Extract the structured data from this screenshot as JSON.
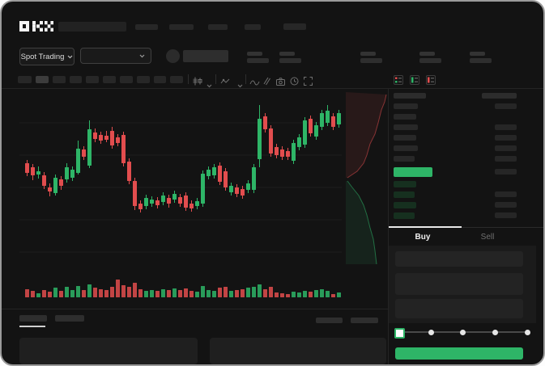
{
  "app": {
    "logo": "OKX"
  },
  "trading_controls": {
    "market_selector_label": "Spot Trading"
  },
  "toolbar_icons": [
    "candle-style",
    "line-style",
    "indicator",
    "wave",
    "compare",
    "camera",
    "clock",
    "fullscreen"
  ],
  "orderbook": {
    "view_icons": [
      "book-both-icon",
      "book-bids-icon",
      "book-asks-icon"
    ],
    "header": {
      "left_width": 40,
      "right_width": 43
    },
    "ask_rows": [
      {
        "lw": 30,
        "rw": 27
      },
      {
        "lw": 28,
        "rw": 0
      },
      {
        "lw": 30,
        "rw": 27
      },
      {
        "lw": 28,
        "rw": 27
      },
      {
        "lw": 30,
        "rw": 27
      },
      {
        "lw": 26,
        "rw": 27
      }
    ],
    "price_row": {
      "lw": 48,
      "rw": 27
    },
    "bid_rows": [
      {
        "lw": 28,
        "rw": 0
      },
      {
        "lw": 26,
        "rw": 27
      },
      {
        "lw": 28,
        "rw": 27
      },
      {
        "lw": 26,
        "rw": 27
      }
    ],
    "tabs": {
      "buy": "Buy",
      "sell": "Sell",
      "active": "buy"
    }
  },
  "trade_form": {
    "slider_steps": 5,
    "slider_value_index": 0,
    "submit_label": ""
  },
  "colors": {
    "green": "#2eb567",
    "red": "#e24d4e",
    "buy_button": "#2eb567",
    "bid_row": "#16301f",
    "ask_row": "#282828",
    "skeleton": "#2b2b2b"
  },
  "chart_data": {
    "type": "candlestick_with_volume",
    "title": "",
    "x_axis": "time (labels not shown)",
    "y_axis": "price (labels not shown)",
    "grid": "faint horizontal lines",
    "note": "values in relative price units read from pixel positions; [open,high,low,close,volume]",
    "candles": [
      [
        130,
        134,
        114,
        118,
        10
      ],
      [
        125,
        129,
        109,
        115,
        8
      ],
      [
        116,
        126,
        111,
        120,
        5
      ],
      [
        115,
        119,
        98,
        102,
        9
      ],
      [
        100,
        105,
        89,
        95,
        7
      ],
      [
        93,
        116,
        90,
        112,
        12
      ],
      [
        110,
        114,
        97,
        102,
        8
      ],
      [
        110,
        130,
        106,
        125,
        13
      ],
      [
        112,
        126,
        108,
        122,
        9
      ],
      [
        118,
        158,
        116,
        148,
        14
      ],
      [
        147,
        151,
        134,
        138,
        9
      ],
      [
        127,
        183,
        124,
        172,
        16
      ],
      [
        168,
        173,
        156,
        160,
        12
      ],
      [
        165,
        169,
        154,
        158,
        10
      ],
      [
        164,
        170,
        156,
        159,
        9
      ],
      [
        170,
        175,
        148,
        152,
        13
      ],
      [
        162,
        166,
        151,
        155,
        22
      ],
      [
        165,
        169,
        126,
        130,
        15
      ],
      [
        132,
        136,
        104,
        108,
        13
      ],
      [
        108,
        112,
        72,
        77,
        18
      ],
      [
        80,
        84,
        69,
        73,
        10
      ],
      [
        77,
        91,
        73,
        87,
        8
      ],
      [
        80,
        89,
        76,
        85,
        9
      ],
      [
        84,
        88,
        74,
        78,
        8
      ],
      [
        82,
        94,
        78,
        90,
        10
      ],
      [
        87,
        91,
        75,
        80,
        9
      ],
      [
        85,
        96,
        81,
        92,
        11
      ],
      [
        88,
        92,
        76,
        80,
        9
      ],
      [
        90,
        94,
        71,
        75,
        11
      ],
      [
        80,
        84,
        70,
        74,
        8
      ],
      [
        77,
        87,
        73,
        83,
        7
      ],
      [
        80,
        121,
        76,
        117,
        14
      ],
      [
        114,
        126,
        110,
        122,
        9
      ],
      [
        115,
        129,
        111,
        125,
        8
      ],
      [
        127,
        131,
        103,
        107,
        12
      ],
      [
        120,
        124,
        96,
        100,
        13
      ],
      [
        94,
        106,
        90,
        102,
        8
      ],
      [
        100,
        104,
        88,
        92,
        9
      ],
      [
        98,
        102,
        86,
        90,
        10
      ],
      [
        97,
        109,
        93,
        105,
        12
      ],
      [
        97,
        129,
        93,
        125,
        13
      ],
      [
        135,
        202,
        125,
        185,
        16
      ],
      [
        188,
        192,
        168,
        172,
        10
      ],
      [
        173,
        177,
        138,
        142,
        13
      ],
      [
        150,
        154,
        136,
        140,
        6
      ],
      [
        147,
        151,
        134,
        138,
        5
      ],
      [
        145,
        149,
        134,
        138,
        4
      ],
      [
        133,
        159,
        129,
        155,
        7
      ],
      [
        150,
        166,
        146,
        162,
        6
      ],
      [
        153,
        187,
        149,
        183,
        8
      ],
      [
        185,
        189,
        163,
        167,
        7
      ],
      [
        163,
        181,
        159,
        177,
        9
      ],
      [
        175,
        196,
        171,
        192,
        10
      ],
      [
        180,
        202,
        176,
        195,
        8
      ],
      [
        188,
        192,
        171,
        175,
        4
      ],
      [
        178,
        196,
        174,
        192,
        6
      ]
    ],
    "depth_strip": {
      "type": "vertical depth chart, asks red top / bids green bottom",
      "red_line": [
        [
          50,
          3
        ],
        [
          48,
          12
        ],
        [
          44,
          22
        ],
        [
          40,
          38
        ],
        [
          36,
          52
        ],
        [
          30,
          64
        ],
        [
          26,
          78
        ],
        [
          22,
          88
        ],
        [
          14,
          98
        ],
        [
          2,
          106
        ]
      ],
      "green_line": [
        [
          2,
          110
        ],
        [
          8,
          118
        ],
        [
          16,
          128
        ],
        [
          22,
          140
        ],
        [
          26,
          152
        ],
        [
          30,
          168
        ],
        [
          34,
          182
        ],
        [
          36,
          196
        ],
        [
          38,
          213
        ]
      ]
    }
  }
}
